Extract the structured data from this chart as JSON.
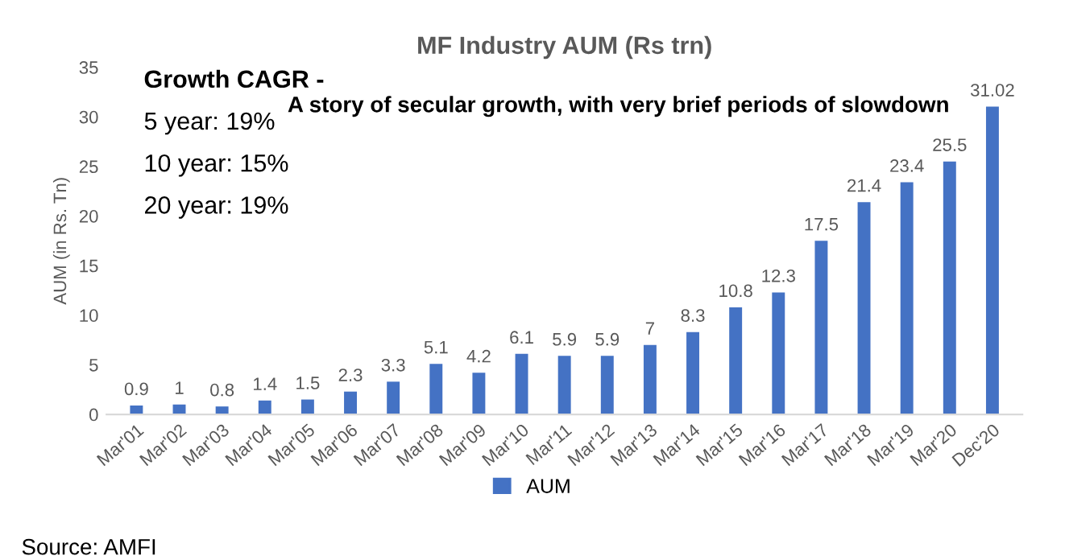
{
  "chart_data": {
    "type": "bar",
    "title": "MF Industry AUM (Rs trn)",
    "ylabel": "AUM (in Rs. Tn)",
    "categories": [
      "Mar'01",
      "Mar'02",
      "Mar'03",
      "Mar'04",
      "Mar'05",
      "Mar'06",
      "Mar'07",
      "Mar'08",
      "Mar'09",
      "Mar'10",
      "Mar'11",
      "Mar'12",
      "Mar'13",
      "Mar'14",
      "Mar'15",
      "Mar'16",
      "Mar'17",
      "Mar'18",
      "Mar'19",
      "Mar'20",
      "Dec'20"
    ],
    "series": [
      {
        "name": "AUM",
        "color": "#4472c4",
        "values": [
          0.9,
          1,
          0.8,
          1.4,
          1.5,
          2.3,
          3.3,
          5.1,
          4.2,
          6.1,
          5.9,
          5.9,
          7,
          8.3,
          10.8,
          12.3,
          17.5,
          21.4,
          23.4,
          25.5,
          31.02
        ]
      }
    ],
    "ylim": [
      0,
      35
    ],
    "yticks": [
      0,
      5,
      10,
      15,
      20,
      25,
      30,
      35
    ],
    "grid": false,
    "legend": "bottom",
    "data_labels": true,
    "annotations": [
      "Growth CAGR -",
      "5 year: 19%",
      "10 year: 15%",
      "20 year: 19%",
      "A story of secular growth, with very brief periods of slowdown",
      "Source: AMFI"
    ]
  }
}
